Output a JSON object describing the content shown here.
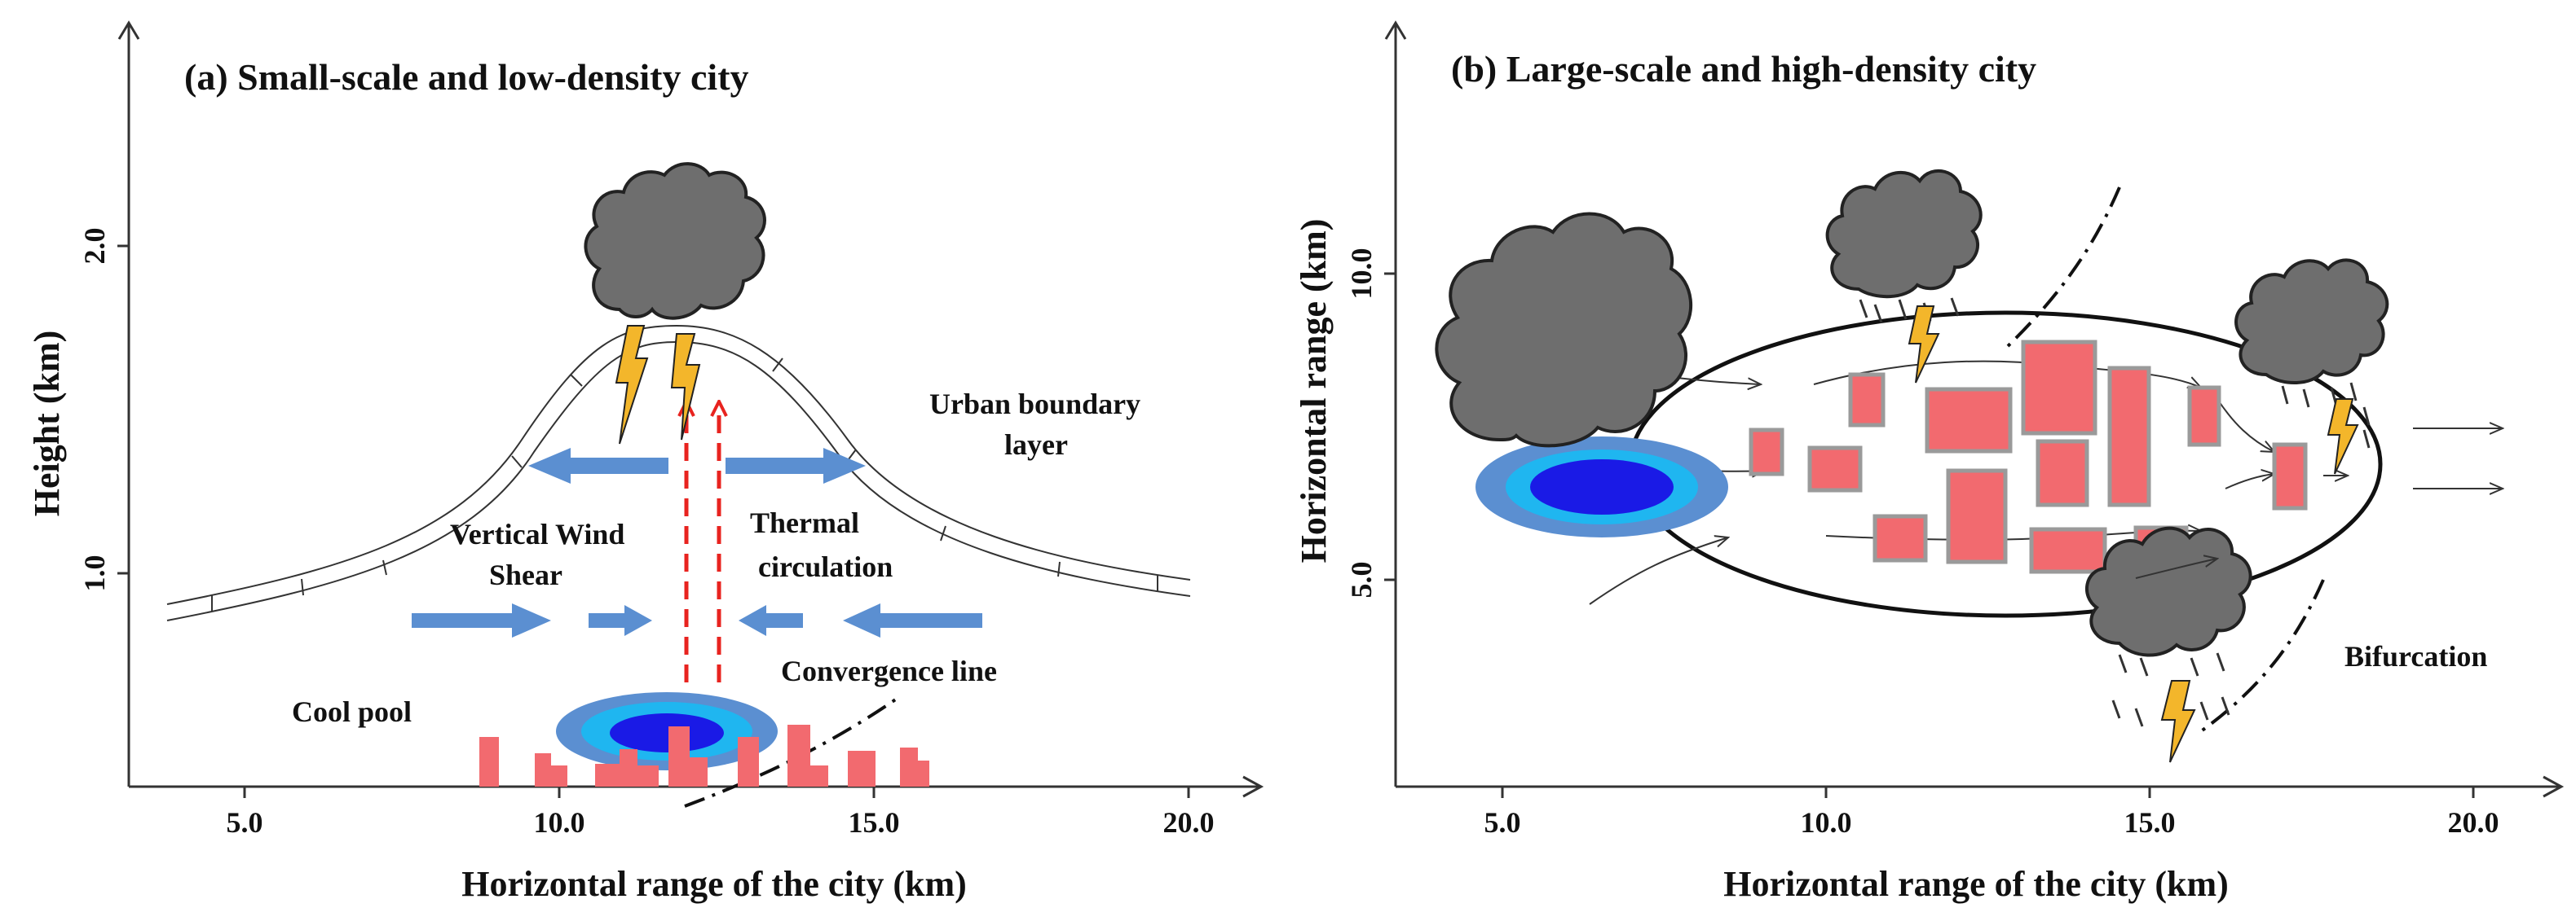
{
  "panel_a": {
    "title": "(a)  Small-scale and low-density city",
    "x_label": "Horizontal range of the city (km)",
    "y_label": "Height (km)",
    "x_ticks": [
      "5.0",
      "10.0",
      "15.0",
      "20.0"
    ],
    "y_ticks": [
      "1.0",
      "2.0"
    ],
    "labels": {
      "urban_boundary_1": "Urban boundary",
      "urban_boundary_2": "layer",
      "vertical_wind_1": "Vertical Wind",
      "vertical_wind_2": "Shear",
      "thermal_1": "Thermal",
      "thermal_2": "circulation",
      "convergence": "Convergence line",
      "cool_pool": "Cool pool"
    }
  },
  "panel_b": {
    "title": "(b)  Large-scale and high-density city",
    "x_label": "Horizontal range of the city (km)",
    "y_label": "Horizontal  range (km)",
    "x_ticks": [
      "5.0",
      "10.0",
      "15.0",
      "20.0"
    ],
    "y_ticks": [
      "5.0",
      "10.0"
    ],
    "labels": {
      "bifurcation": "Bifurcation"
    }
  },
  "colors": {
    "building": "#f26a6f",
    "cloud": "#6e6e6e",
    "lightning": "#f3b62b",
    "wind_arrow": "#5b8fd1",
    "thermal_arrow": "#e8231f",
    "pool_outer": "#5b8fd1",
    "pool_mid": "#1fb6f0",
    "pool_inner": "#1a1ae6"
  }
}
